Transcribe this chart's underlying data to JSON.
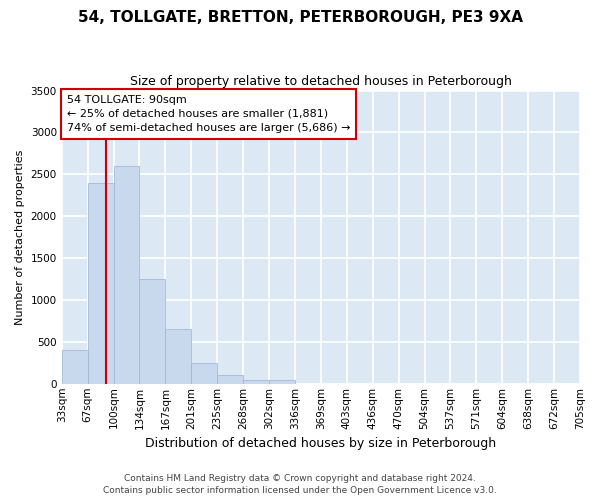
{
  "title": "54, TOLLGATE, BRETTON, PETERBOROUGH, PE3 9XA",
  "subtitle": "Size of property relative to detached houses in Peterborough",
  "xlabel": "Distribution of detached houses by size in Peterborough",
  "ylabel": "Number of detached properties",
  "bar_color": "#c8d9ee",
  "bar_edge_color": "#9ab3d0",
  "fig_bg_color": "#ffffff",
  "plot_bg_color": "#dce9f5",
  "grid_color": "#ffffff",
  "tick_labels": [
    "33sqm",
    "67sqm",
    "100sqm",
    "134sqm",
    "167sqm",
    "201sqm",
    "235sqm",
    "268sqm",
    "302sqm",
    "336sqm",
    "369sqm",
    "403sqm",
    "436sqm",
    "470sqm",
    "504sqm",
    "537sqm",
    "571sqm",
    "604sqm",
    "638sqm",
    "672sqm",
    "705sqm"
  ],
  "bar_values": [
    400,
    2400,
    2600,
    1250,
    650,
    250,
    100,
    50,
    40,
    0,
    0,
    0,
    0,
    0,
    0,
    0,
    0,
    0,
    0,
    0
  ],
  "n_bars": 20,
  "ylim": [
    0,
    3500
  ],
  "yticks": [
    0,
    500,
    1000,
    1500,
    2000,
    2500,
    3000,
    3500
  ],
  "property_line_color": "#cc0000",
  "annotation_title": "54 TOLLGATE: 90sqm",
  "annotation_line1": "← 25% of detached houses are smaller (1,881)",
  "annotation_line2": "74% of semi-detached houses are larger (5,686) →",
  "annotation_box_color": "#ffffff",
  "annotation_box_edge_color": "#cc0000",
  "footer_line1": "Contains HM Land Registry data © Crown copyright and database right 2024.",
  "footer_line2": "Contains public sector information licensed under the Open Government Licence v3.0.",
  "title_fontsize": 11,
  "subtitle_fontsize": 9,
  "xlabel_fontsize": 9,
  "ylabel_fontsize": 8,
  "tick_fontsize": 7.5,
  "annotation_fontsize": 8,
  "footer_fontsize": 6.5
}
